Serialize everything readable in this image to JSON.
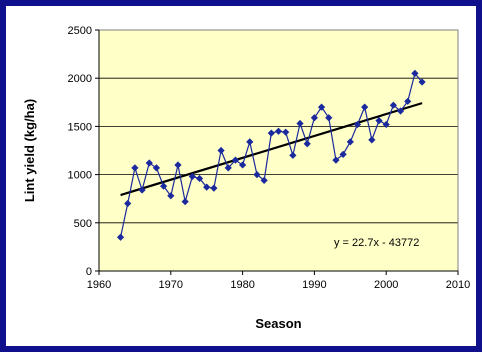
{
  "chart_data": {
    "type": "line",
    "title": "",
    "xlabel": "Season",
    "ylabel": "Lint yield (kg/ha)",
    "xlim": [
      1960,
      2010
    ],
    "ylim": [
      0,
      2500
    ],
    "x_ticks": [
      1960,
      1970,
      1980,
      1990,
      2000,
      2010
    ],
    "y_ticks": [
      0,
      500,
      1000,
      1500,
      2000,
      2500
    ],
    "grid": "horizontal",
    "legend": "none",
    "colors": {
      "series": "#1a2a9e",
      "trend": "#000000",
      "plot_bg": "#ffffc8",
      "border": "#10108c"
    },
    "series": [
      {
        "x": [
          1963,
          1964,
          1965,
          1966,
          1967,
          1968,
          1969,
          1970,
          1971,
          1972,
          1973,
          1974,
          1975,
          1976,
          1977,
          1978,
          1979,
          1980,
          1981,
          1982,
          1983,
          1984,
          1985,
          1986,
          1987,
          1988,
          1989,
          1990,
          1991,
          1992,
          1993,
          1994,
          1995,
          1996,
          1997,
          1998,
          1999,
          2000,
          2001,
          2002,
          2003,
          2004,
          2005
        ],
        "values": [
          350,
          700,
          1070,
          840,
          1120,
          1070,
          880,
          780,
          1100,
          720,
          980,
          960,
          870,
          860,
          1250,
          1070,
          1150,
          1100,
          1340,
          1000,
          940,
          1430,
          1450,
          1440,
          1200,
          1530,
          1320,
          1590,
          1700,
          1590,
          1150,
          1210,
          1340,
          1520,
          1700,
          1360,
          1560,
          1520,
          1720,
          1660,
          1760,
          2050,
          1960
        ]
      }
    ],
    "trendline": {
      "type": "linear",
      "slope": 22.7,
      "intercept": -43772,
      "x_range": [
        1963,
        2005
      ],
      "equation_label": "y = 22.7x - 43772"
    }
  }
}
